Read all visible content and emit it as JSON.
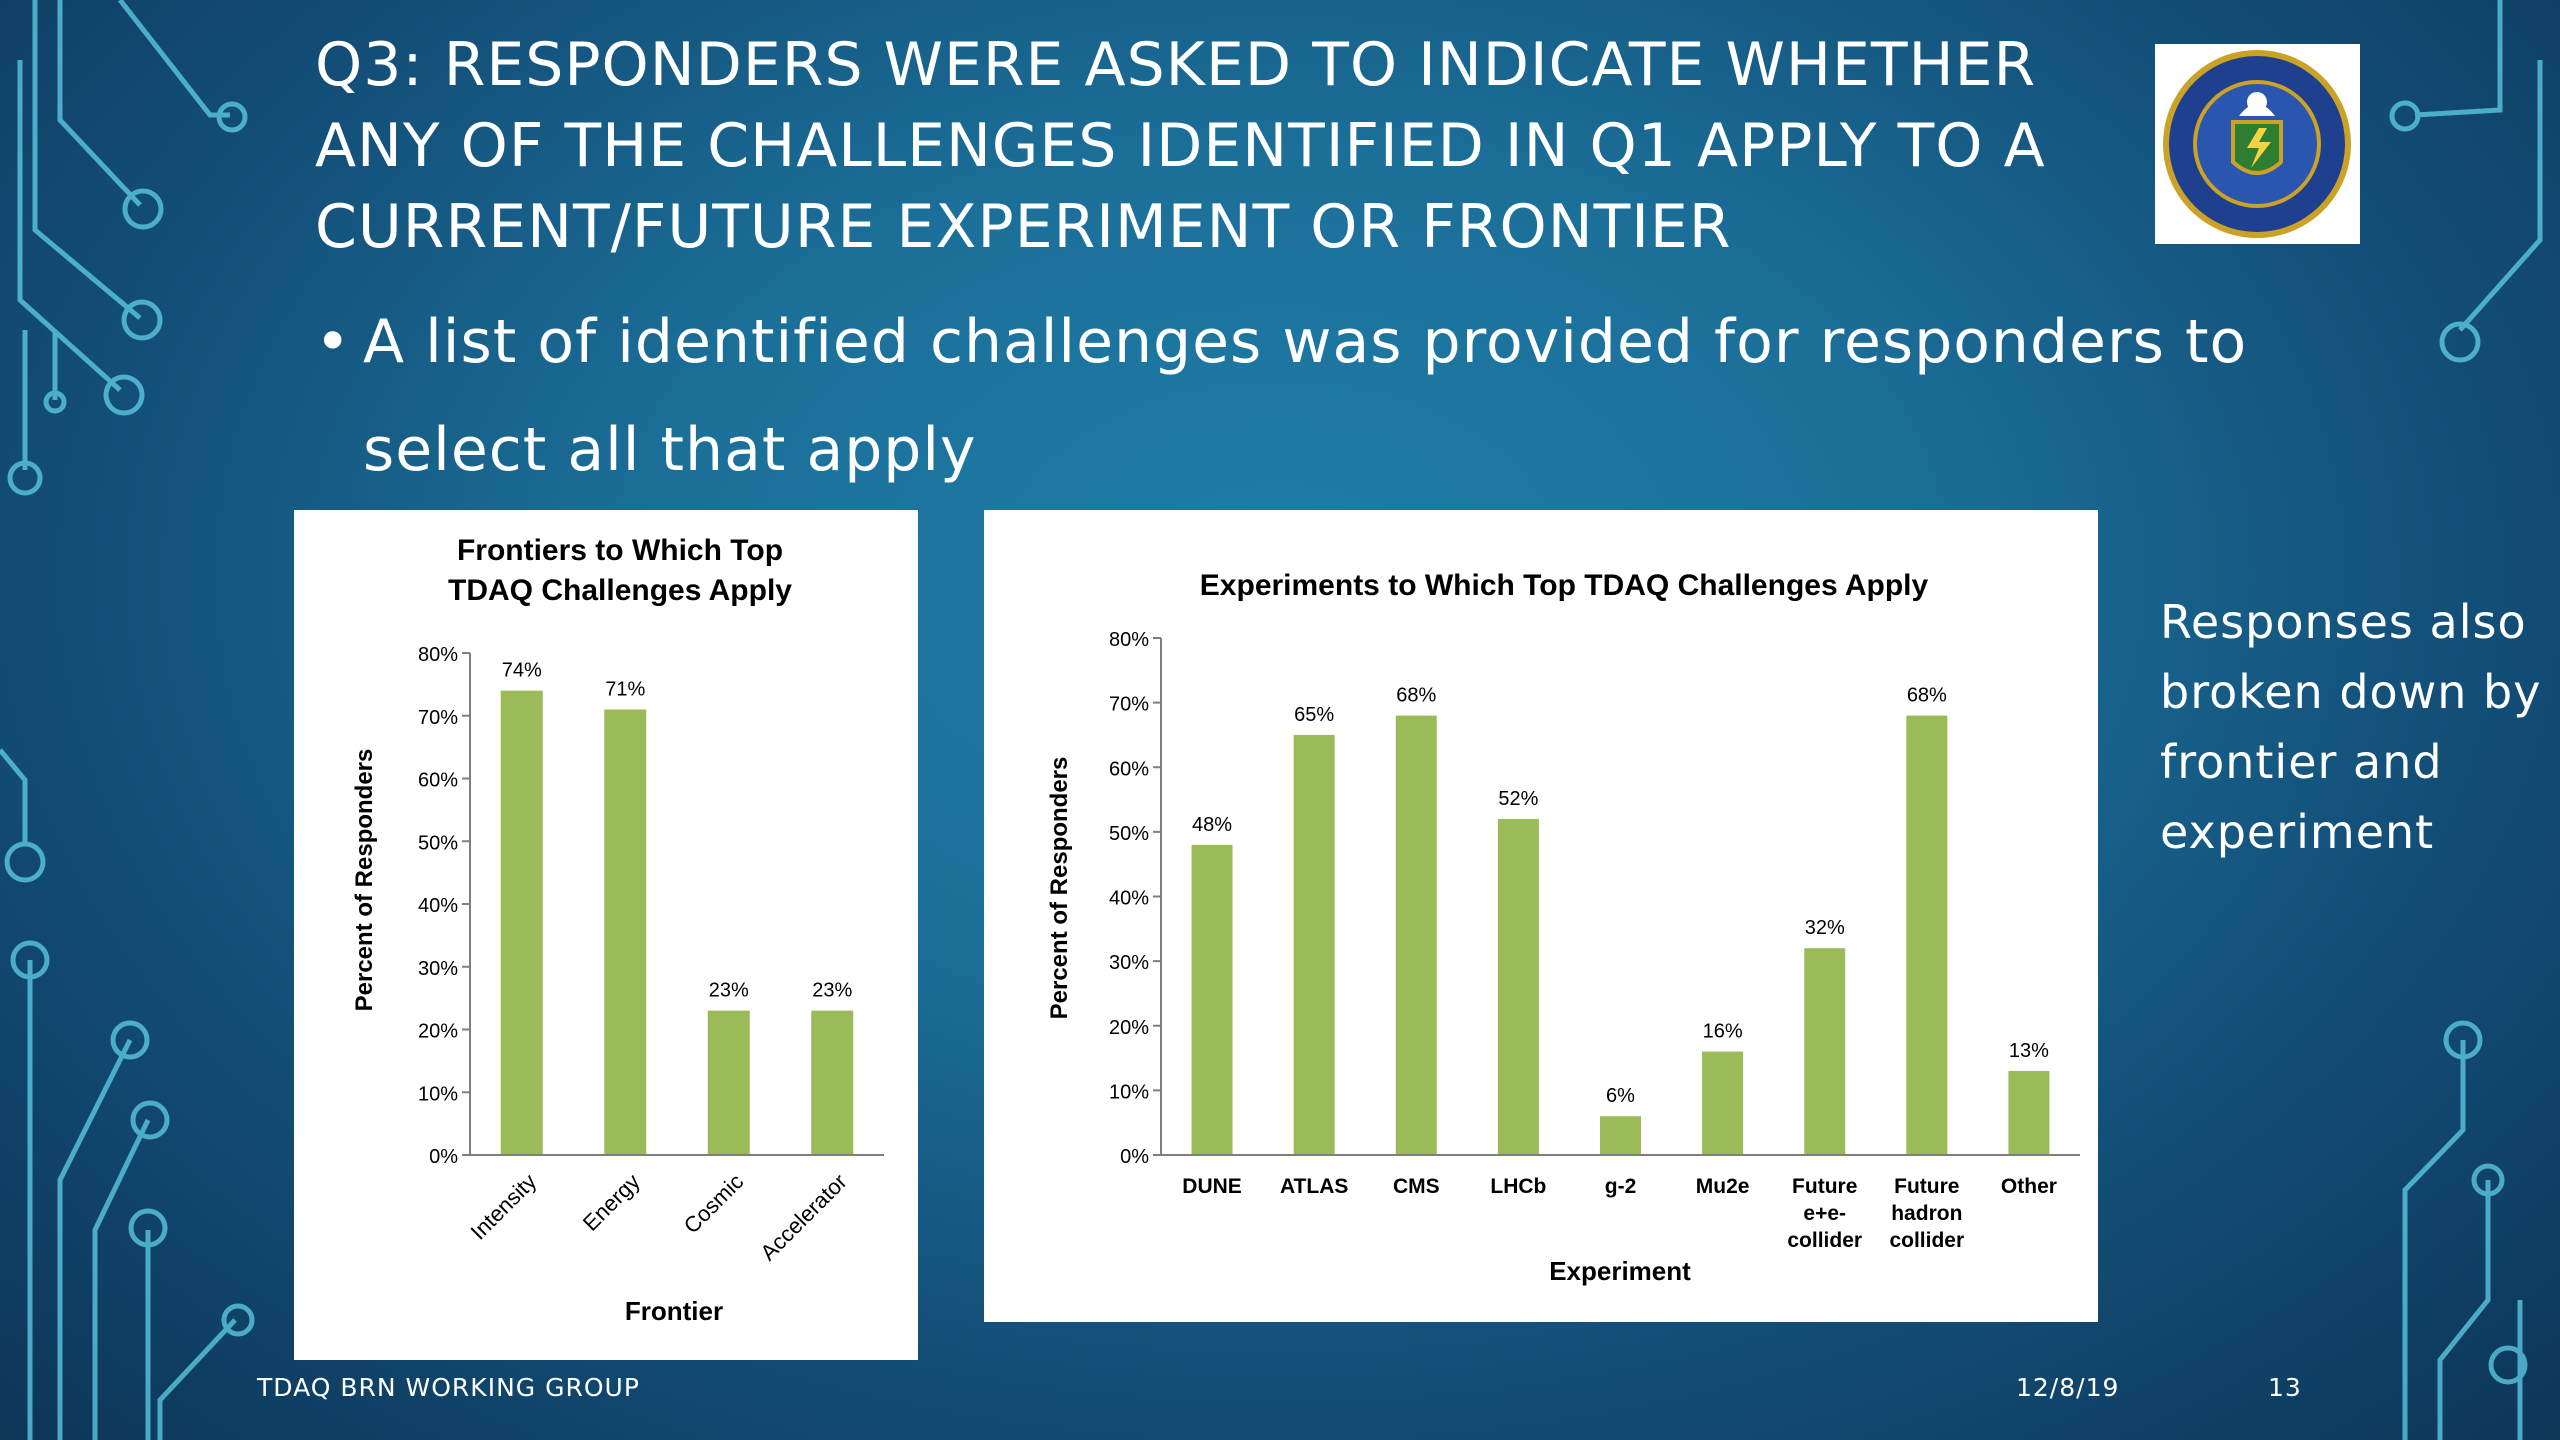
{
  "slide": {
    "title": "Q3: RESPONDERS WERE ASKED TO INDICATE WHETHER ANY OF THE CHALLENGES IDENTIFIED IN Q1 APPLY TO A CURRENT/FUTURE EXPERIMENT OR FRONTIER",
    "bullet": "A list of identified challenges was provided for responders to select all that apply",
    "side_note": "Responses also broken down by frontier and experiment",
    "footer_left": "TDAQ BRN WORKING GROUP",
    "footer_date": "12/8/19",
    "page_number": "13"
  },
  "logo": {
    "icon": "doe-seal-icon"
  },
  "colors": {
    "bar": "#9bbb59",
    "axis": "#7f7f7f"
  },
  "chart_data": [
    {
      "type": "bar",
      "title": "Frontiers to Which Top TDAQ Challenges Apply",
      "xlabel": "Frontier",
      "ylabel": "Percent of Responders",
      "ylim": [
        0,
        80
      ],
      "yticks": [
        "0%",
        "10%",
        "20%",
        "30%",
        "40%",
        "50%",
        "60%",
        "70%",
        "80%"
      ],
      "categories": [
        "Intensity",
        "Energy",
        "Cosmic",
        "Accelerator"
      ],
      "values": [
        74,
        71,
        23,
        23
      ],
      "value_labels": [
        "74%",
        "71%",
        "23%",
        "23%"
      ],
      "grid": false,
      "legend": "none"
    },
    {
      "type": "bar",
      "title": "Experiments to Which Top TDAQ Challenges Apply",
      "xlabel": "Experiment",
      "ylabel": "Percent of Responders",
      "ylim": [
        0,
        80
      ],
      "yticks": [
        "0%",
        "10%",
        "20%",
        "30%",
        "40%",
        "50%",
        "60%",
        "70%",
        "80%"
      ],
      "categories": [
        "DUNE",
        "ATLAS",
        "CMS",
        "LHCb",
        "g-2",
        "Mu2e",
        "Future e+e- collider",
        "Future hadron collider",
        "Other"
      ],
      "values": [
        48,
        65,
        68,
        52,
        6,
        16,
        32,
        68,
        13
      ],
      "value_labels": [
        "48%",
        "65%",
        "68%",
        "52%",
        "6%",
        "16%",
        "32%",
        "68%",
        "13%"
      ],
      "grid": false,
      "legend": "none"
    }
  ]
}
